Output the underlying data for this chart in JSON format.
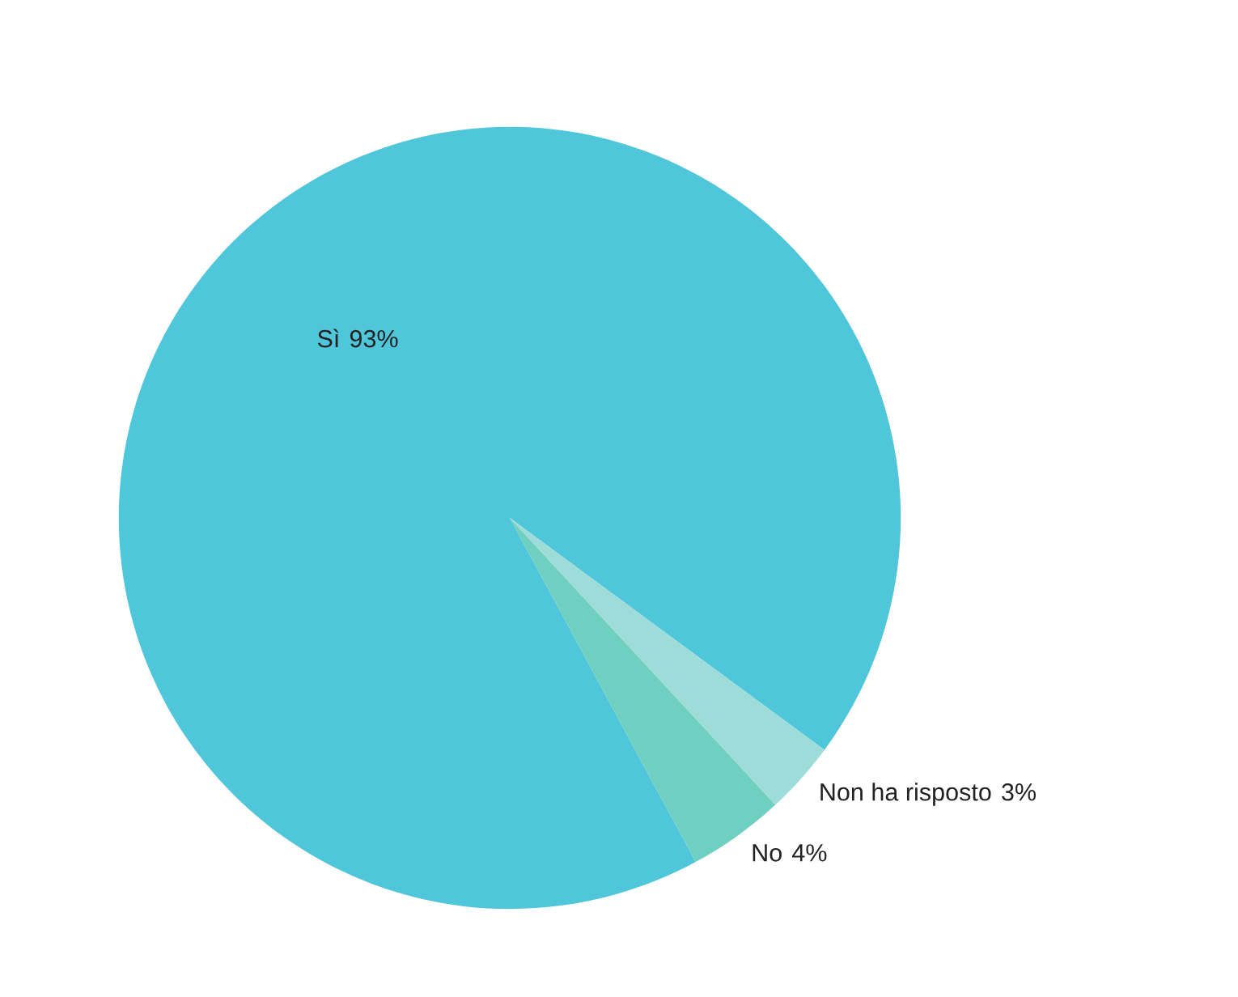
{
  "chart_data": {
    "type": "pie",
    "categories": [
      "Sì",
      "No",
      "Non ha risposto"
    ],
    "values": [
      93,
      4,
      3
    ],
    "colors": [
      "#4fc6d9",
      "#6fcfc0",
      "#9edcd9"
    ],
    "value_labels": [
      "93%",
      "4%",
      "3%"
    ]
  }
}
